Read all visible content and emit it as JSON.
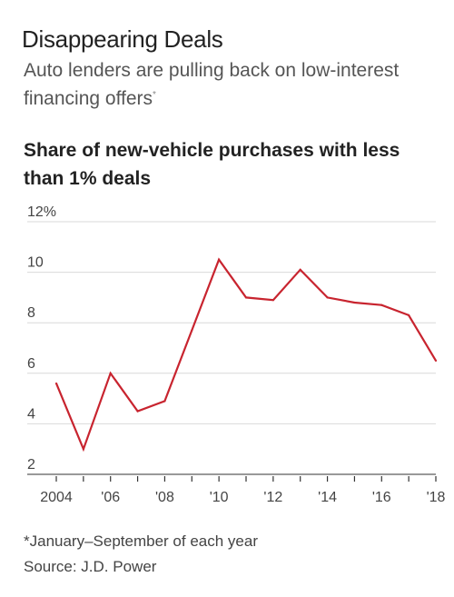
{
  "header": {
    "title": "Disappearing Deals",
    "subtitle": "Auto lenders are pulling back on low-interest financing offers",
    "subtitle_marker": "*"
  },
  "chart_data": {
    "type": "line",
    "title": "Share of new-vehicle purchases with less than 1% deals",
    "xlabel": "",
    "ylabel": "",
    "x": [
      2004,
      2005,
      2006,
      2007,
      2008,
      2009,
      2010,
      2011,
      2012,
      2013,
      2014,
      2015,
      2016,
      2017,
      2018
    ],
    "series": [
      {
        "values": [
          5.6,
          3.0,
          6.0,
          4.5,
          4.9,
          7.7,
          10.5,
          9.0,
          8.9,
          10.1,
          9.0,
          8.8,
          8.7,
          8.3,
          6.5
        ]
      }
    ],
    "ylim": [
      2,
      12
    ],
    "xlim": [
      2004,
      2018
    ],
    "y_ticks": [
      "2",
      "4",
      "6",
      "8",
      "10",
      "12%"
    ],
    "y_tick_values": [
      2,
      4,
      6,
      8,
      10,
      12
    ],
    "x_ticks": [
      "2004",
      "'06",
      "'08",
      "'10",
      "'12",
      "'14",
      "'16",
      "'18"
    ],
    "x_tick_values": [
      2004,
      2006,
      2008,
      2010,
      2012,
      2014,
      2016,
      2018
    ],
    "grid": "horizontal",
    "line_color": "#c8242f",
    "grid_color": "#d9d9d9"
  },
  "footer": {
    "note": "*January–September of each year",
    "source": "Source: J.D. Power"
  }
}
